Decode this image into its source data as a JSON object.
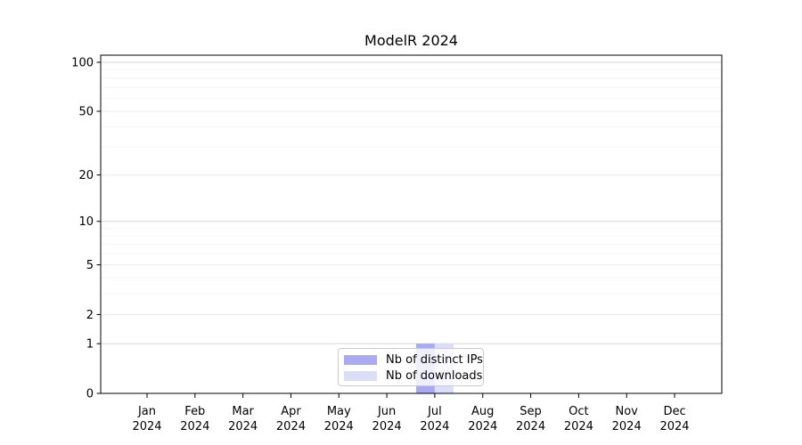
{
  "chart_data": {
    "type": "bar",
    "title": "ModelR 2024",
    "categories": [
      "Jan",
      "Feb",
      "Mar",
      "Apr",
      "May",
      "Jun",
      "Jul",
      "Aug",
      "Sep",
      "Oct",
      "Nov",
      "Dec"
    ],
    "category_year": "2024",
    "series": [
      {
        "name": "Nb of distinct IPs",
        "color": "#a9aaf1",
        "values": [
          0,
          0,
          0,
          0,
          0,
          0,
          1,
          0,
          0,
          0,
          0,
          0
        ]
      },
      {
        "name": "Nb of downloads",
        "color": "#dcddf9",
        "values": [
          0,
          0,
          0,
          0,
          0,
          0,
          1,
          0,
          0,
          0,
          0,
          0
        ]
      }
    ],
    "xlabel": "",
    "ylabel": "",
    "yscale": "log1p",
    "yticks": [
      0,
      1,
      2,
      5,
      10,
      20,
      50,
      100
    ],
    "yminorticks": [
      3,
      4,
      6,
      7,
      8,
      9,
      30,
      40,
      60,
      70,
      80,
      90
    ],
    "ylim": [
      0,
      110
    ],
    "grid": true,
    "legend_position": "bottom-center",
    "colors": {
      "spine": "#000000",
      "grid_major_decade": "#d6d6d6",
      "grid_major": "#ececec",
      "grid_minor": "#f5f5f5",
      "tick_label": "#000000",
      "legend_border": "#cccccc"
    }
  }
}
